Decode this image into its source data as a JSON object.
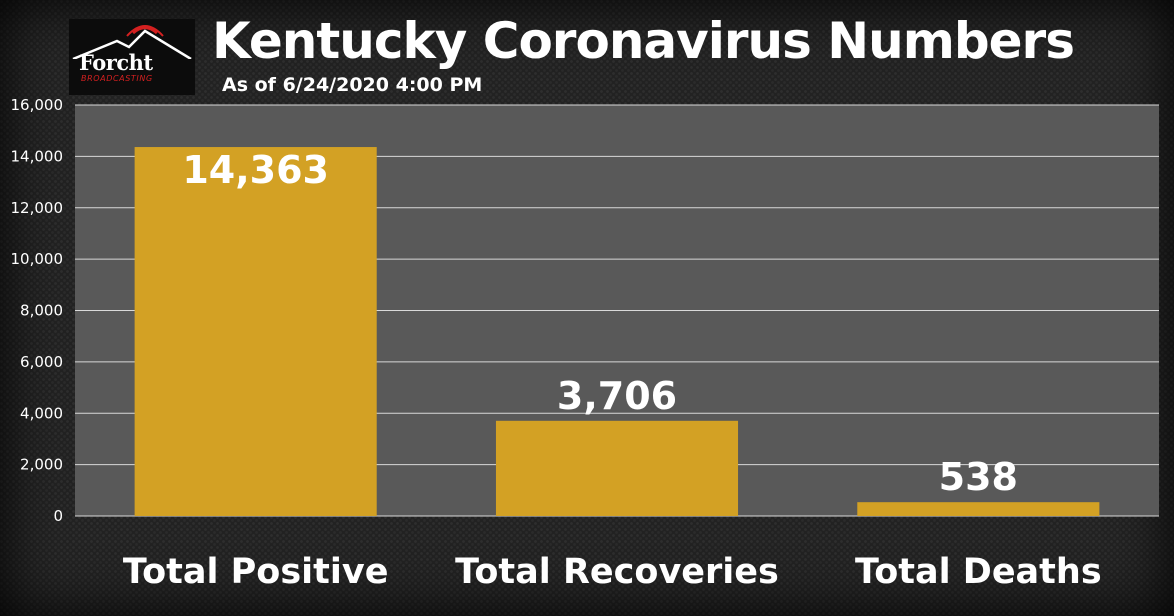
{
  "header": {
    "title": "Kentucky Coronavirus Numbers",
    "subtitle": "As of 6/24/2020 4:00 PM"
  },
  "logo": {
    "name": "Forcht",
    "tagline": "BROADCASTING",
    "icon": "mountain-icon"
  },
  "colors": {
    "bar": "#d3a124",
    "plot_background": "#595959",
    "gridline": "#d9d9d9",
    "text": "#ffffff",
    "logo_accent": "#d42020"
  },
  "chart_data": {
    "type": "bar",
    "title": "Kentucky Coronavirus Numbers",
    "subtitle": "As of 6/24/2020 4:00 PM",
    "categories": [
      "Total Positive",
      "Total Recoveries",
      "Total Deaths"
    ],
    "values": [
      14363,
      3706,
      538
    ],
    "value_labels": [
      "14,363",
      "3,706",
      "538"
    ],
    "ylim": [
      0,
      16000
    ],
    "yticks": [
      0,
      2000,
      4000,
      6000,
      8000,
      10000,
      12000,
      14000,
      16000
    ],
    "ytick_labels": [
      "0",
      "2,000",
      "4,000",
      "6,000",
      "8,000",
      "10,000",
      "12,000",
      "14,000",
      "16,000"
    ],
    "grid": true,
    "legend": "none",
    "xlabel": "",
    "ylabel": ""
  }
}
